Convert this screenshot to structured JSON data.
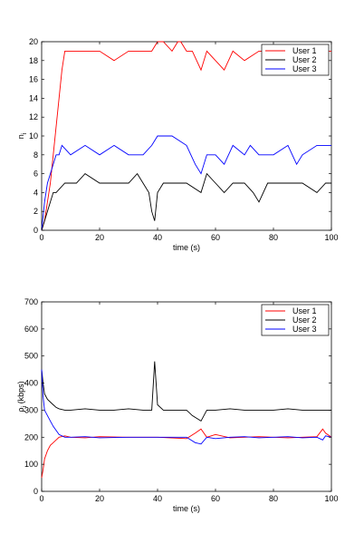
{
  "chart_data": [
    {
      "type": "line",
      "xlabel": "time (s)",
      "ylabel": "n",
      "ylabel_sub": "i",
      "xlim": [
        0,
        100
      ],
      "ylim": [
        0,
        20
      ],
      "xticks": [
        0,
        20,
        40,
        60,
        80,
        100
      ],
      "yticks": [
        0,
        2,
        4,
        6,
        8,
        10,
        12,
        14,
        16,
        18,
        20
      ],
      "legend_position": "top-right",
      "series": [
        {
          "name": "User 1",
          "color": "#ff0000",
          "x": [
            0,
            1,
            2,
            3,
            4,
            5,
            6,
            7,
            8,
            10,
            15,
            20,
            25,
            30,
            35,
            38,
            40,
            42,
            45,
            47,
            48,
            50,
            52,
            55,
            57,
            60,
            63,
            66,
            70,
            75,
            80,
            85,
            90,
            95,
            100
          ],
          "y": [
            0,
            1,
            3,
            5,
            8,
            11,
            14,
            17,
            19,
            19,
            19,
            19,
            18,
            19,
            19,
            19,
            20,
            20,
            19,
            20,
            20,
            19,
            19,
            17,
            19,
            18,
            17,
            19,
            18,
            19,
            19,
            18,
            19,
            19,
            19
          ]
        },
        {
          "name": "User 2",
          "color": "#000000",
          "x": [
            0,
            1,
            2,
            3,
            4,
            5,
            8,
            10,
            12,
            15,
            20,
            25,
            30,
            33,
            35,
            37,
            38,
            39,
            40,
            42,
            45,
            50,
            55,
            57,
            60,
            63,
            66,
            70,
            73,
            75,
            78,
            80,
            85,
            90,
            95,
            98,
            100
          ],
          "y": [
            0,
            1,
            2,
            3,
            4,
            4,
            5,
            5,
            5,
            6,
            5,
            5,
            5,
            6,
            5,
            4,
            2,
            1,
            4,
            5,
            5,
            5,
            4,
            6,
            5,
            4,
            5,
            5,
            4,
            3,
            5,
            5,
            5,
            5,
            4,
            5,
            5
          ]
        },
        {
          "name": "User 3",
          "color": "#0000ff",
          "x": [
            0,
            1,
            2,
            3,
            4,
            5,
            6,
            7,
            10,
            15,
            20,
            25,
            30,
            35,
            38,
            40,
            45,
            50,
            53,
            55,
            57,
            60,
            63,
            66,
            70,
            72,
            75,
            80,
            85,
            88,
            90,
            95,
            100
          ],
          "y": [
            0,
            3,
            5,
            6,
            7,
            8,
            8,
            9,
            8,
            9,
            8,
            9,
            8,
            8,
            9,
            10,
            10,
            9,
            7,
            6,
            8,
            8,
            7,
            9,
            8,
            9,
            8,
            8,
            9,
            7,
            8,
            9,
            9
          ]
        }
      ]
    },
    {
      "type": "line",
      "xlabel": "time (s)",
      "ylabel": "ρ",
      "ylabel_sub": "i",
      "ylabel_suffix": "(kbps)",
      "xlim": [
        0,
        100
      ],
      "ylim": [
        0,
        700
      ],
      "xticks": [
        0,
        20,
        40,
        60,
        80,
        100
      ],
      "yticks": [
        0,
        100,
        200,
        300,
        400,
        500,
        600,
        700
      ],
      "legend_position": "top-right",
      "series": [
        {
          "name": "User 1",
          "color": "#ff0000",
          "x": [
            0,
            0.5,
            1,
            2,
            3,
            4,
            5,
            6,
            8,
            10,
            15,
            20,
            30,
            40,
            50,
            53,
            55,
            57,
            60,
            65,
            70,
            75,
            80,
            85,
            90,
            95,
            97,
            98,
            100
          ],
          "y": [
            50,
            80,
            120,
            150,
            170,
            180,
            190,
            200,
            205,
            200,
            198,
            202,
            200,
            200,
            195,
            215,
            230,
            200,
            210,
            198,
            200,
            202,
            200,
            198,
            200,
            202,
            230,
            215,
            200
          ]
        },
        {
          "name": "User 2",
          "color": "#000000",
          "x": [
            0,
            0.5,
            1,
            2,
            3,
            4,
            5,
            6,
            8,
            10,
            15,
            20,
            25,
            30,
            35,
            38,
            39,
            40,
            42,
            45,
            50,
            52,
            55,
            57,
            60,
            65,
            70,
            75,
            80,
            85,
            90,
            95,
            100
          ],
          "y": [
            450,
            400,
            360,
            340,
            330,
            320,
            310,
            305,
            300,
            300,
            305,
            300,
            300,
            305,
            300,
            300,
            480,
            320,
            300,
            300,
            300,
            280,
            260,
            300,
            300,
            305,
            300,
            300,
            300,
            305,
            300,
            300,
            300
          ]
        },
        {
          "name": "User 3",
          "color": "#0000ff",
          "x": [
            0,
            0.5,
            1,
            2,
            3,
            4,
            5,
            6,
            8,
            10,
            15,
            20,
            30,
            40,
            50,
            53,
            55,
            57,
            60,
            65,
            70,
            75,
            80,
            85,
            90,
            95,
            97,
            98,
            100
          ],
          "y": [
            450,
            350,
            300,
            280,
            260,
            240,
            225,
            210,
            200,
            200,
            202,
            198,
            200,
            200,
            200,
            180,
            175,
            200,
            195,
            200,
            202,
            198,
            200,
            202,
            198,
            200,
            190,
            205,
            200
          ]
        }
      ]
    }
  ]
}
